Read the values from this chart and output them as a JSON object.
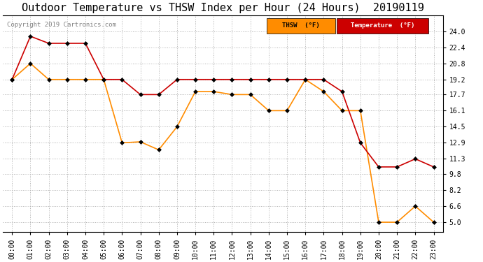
{
  "title": "Outdoor Temperature vs THSW Index per Hour (24 Hours)  20190119",
  "copyright": "Copyright 2019 Cartronics.com",
  "hours": [
    "00:00",
    "01:00",
    "02:00",
    "03:00",
    "04:00",
    "05:00",
    "06:00",
    "07:00",
    "08:00",
    "09:00",
    "10:00",
    "11:00",
    "12:00",
    "13:00",
    "14:00",
    "15:00",
    "16:00",
    "17:00",
    "18:00",
    "19:00",
    "20:00",
    "21:00",
    "22:00",
    "23:00"
  ],
  "thsw": [
    19.2,
    20.8,
    19.2,
    19.2,
    19.2,
    19.2,
    12.9,
    13.0,
    12.2,
    14.5,
    18.0,
    18.0,
    17.7,
    17.7,
    16.1,
    16.1,
    19.2,
    18.0,
    16.1,
    16.1,
    5.0,
    5.0,
    6.6,
    5.0
  ],
  "temperature": [
    19.2,
    23.5,
    22.8,
    22.8,
    22.8,
    19.2,
    19.2,
    17.7,
    17.7,
    19.2,
    19.2,
    19.2,
    19.2,
    19.2,
    19.2,
    19.2,
    19.2,
    19.2,
    18.0,
    12.9,
    10.5,
    10.5,
    11.3,
    10.5
  ],
  "thsw_color": "#FF8C00",
  "temp_color": "#CC0000",
  "background_color": "#ffffff",
  "grid_color": "#b0b0b0",
  "plot_bg_color": "#ffffff",
  "ylim_min": 4.0,
  "ylim_max": 25.6,
  "yticks": [
    5.0,
    6.6,
    8.2,
    9.8,
    11.3,
    12.9,
    14.5,
    16.1,
    17.7,
    19.2,
    20.8,
    22.4,
    24.0
  ],
  "legend_thsw_bg": "#FF8C00",
  "legend_temp_bg": "#CC0000",
  "legend_thsw_label": "THSW  (°F)",
  "legend_temp_label": "Temperature  (°F)",
  "title_fontsize": 11,
  "tick_fontsize": 7,
  "copyright_fontsize": 6.5
}
